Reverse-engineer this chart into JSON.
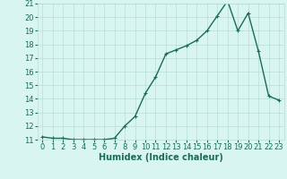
{
  "x": [
    0,
    1,
    2,
    3,
    4,
    5,
    6,
    7,
    8,
    9,
    10,
    11,
    12,
    13,
    14,
    15,
    16,
    17,
    18,
    19,
    20,
    21,
    22,
    23
  ],
  "y": [
    11.2,
    11.1,
    11.1,
    11.0,
    11.0,
    11.0,
    11.0,
    11.1,
    12.0,
    12.7,
    14.4,
    15.6,
    17.3,
    17.6,
    17.9,
    18.3,
    19.0,
    20.1,
    21.2,
    19.0,
    20.3,
    17.5,
    14.2,
    13.9
  ],
  "line_color": "#1a6b5a",
  "marker": "+",
  "marker_size": 3,
  "bg_color": "#d8f5f0",
  "grid_color": "#b8ddd8",
  "xlabel": "Humidex (Indice chaleur)",
  "ylim": [
    11,
    21
  ],
  "xlim": [
    -0.5,
    23.5
  ],
  "yticks": [
    11,
    12,
    13,
    14,
    15,
    16,
    17,
    18,
    19,
    20,
    21
  ],
  "xticks": [
    0,
    1,
    2,
    3,
    4,
    5,
    6,
    7,
    8,
    9,
    10,
    11,
    12,
    13,
    14,
    15,
    16,
    17,
    18,
    19,
    20,
    21,
    22,
    23
  ],
  "xlabel_fontsize": 7,
  "tick_fontsize": 6,
  "linewidth": 1.0
}
